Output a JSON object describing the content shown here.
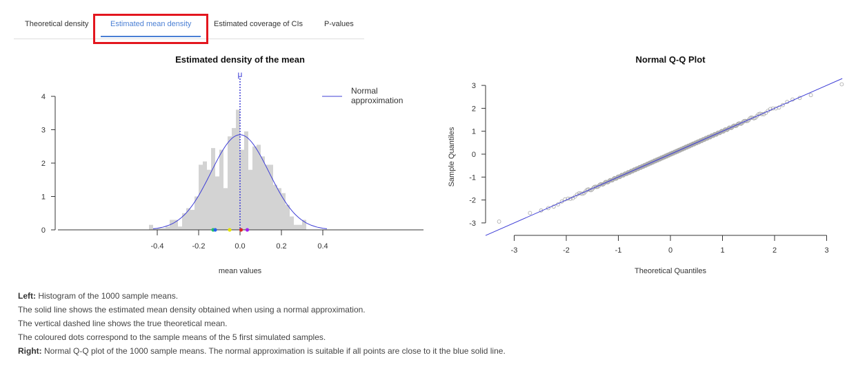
{
  "tabs": [
    {
      "label": "Theoretical density",
      "active": false
    },
    {
      "label": "Estimated mean density",
      "active": true
    },
    {
      "label": "Estimated coverage of CIs",
      "active": false
    },
    {
      "label": "P-values",
      "active": false
    }
  ],
  "colors": {
    "accent": "#4a7fd4",
    "highlight": "#e3161e",
    "line": "#3d3dd6",
    "bar": "#d3d3d3"
  },
  "chart_data": [
    {
      "type": "bar",
      "title": "Estimated density of the mean",
      "xlabel": "mean values",
      "ylabel": "",
      "xlim": [
        -0.45,
        0.45
      ],
      "ylim": [
        0,
        4.2
      ],
      "xticks": [
        "-0.4",
        "-0.2",
        "0.0",
        "0.2",
        "0.4"
      ],
      "yticks": [
        "0",
        "1",
        "2",
        "3",
        "4"
      ],
      "mu_label": "μ",
      "legend": {
        "label": "Normal approximation",
        "position": "top-right"
      },
      "bin_width": 0.02,
      "bin_starts": [
        -0.44,
        -0.42,
        -0.4,
        -0.38,
        -0.36,
        -0.34,
        -0.32,
        -0.3,
        -0.28,
        -0.26,
        -0.24,
        -0.22,
        -0.2,
        -0.18,
        -0.16,
        -0.14,
        -0.12,
        -0.1,
        -0.08,
        -0.06,
        -0.04,
        -0.02,
        0.0,
        0.02,
        0.04,
        0.06,
        0.08,
        0.1,
        0.12,
        0.14,
        0.16,
        0.18,
        0.2,
        0.22,
        0.24,
        0.26,
        0.28,
        0.3,
        0.32
      ],
      "densities": [
        0.15,
        0.05,
        0.05,
        0.05,
        0.1,
        0.3,
        0.3,
        0.1,
        0.5,
        0.65,
        0.6,
        1.0,
        1.95,
        2.05,
        1.8,
        2.45,
        1.6,
        2.4,
        1.25,
        2.8,
        3.05,
        3.6,
        2.4,
        2.95,
        1.8,
        2.5,
        2.55,
        2.2,
        1.95,
        1.95,
        1.35,
        1.25,
        1.1,
        0.75,
        0.4,
        0.15,
        0.15,
        0.3,
        0.0
      ],
      "normal_curve": {
        "mean": 0.0,
        "sd": 0.14
      },
      "sample_dots": [
        {
          "x": -0.13,
          "color": "#22c55e"
        },
        {
          "x": -0.12,
          "color": "#2563eb"
        },
        {
          "x": -0.05,
          "color": "#e6e600"
        },
        {
          "x": 0.005,
          "color": "#dc2626"
        },
        {
          "x": 0.035,
          "color": "#a020f0"
        }
      ]
    },
    {
      "type": "scatter",
      "title": "Normal Q-Q Plot",
      "xlabel": "Theoretical Quantiles",
      "ylabel": "Sample Quantiles",
      "xlim": [
        -3.4,
        3.4
      ],
      "ylim": [
        -3.5,
        3.5
      ],
      "xticks": [
        "-3",
        "-2",
        "-1",
        "0",
        "1",
        "2",
        "3"
      ],
      "yticks": [
        "-3",
        "-2",
        "-1",
        "0",
        "1",
        "2",
        "3"
      ],
      "reference_line": {
        "intercept": 0.0,
        "slope": 1.0
      },
      "n_points": 1000
    }
  ],
  "caption": {
    "left_label": "Left:",
    "left_text": " Histogram of the 1000 sample means.",
    "line2": "The solid line shows the estimated mean density obtained when using a normal approximation.",
    "line3": "The vertical dashed line shows the true theoretical mean.",
    "line4": "The coloured dots correspond to the sample means of the 5 first simulated samples.",
    "right_label": "Right:",
    "right_text": " Normal Q-Q plot of the 1000 sample means. The normal approximation is suitable if all points are close to it the blue solid line."
  }
}
